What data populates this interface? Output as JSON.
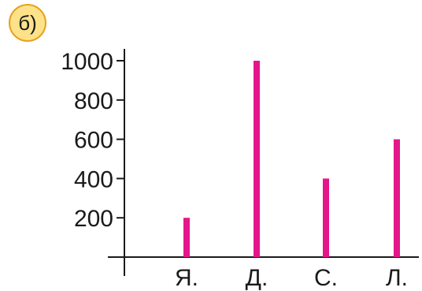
{
  "badge": {
    "label": "б)",
    "fill": "#fde28a",
    "stroke": "#e8a21c"
  },
  "chart_data": {
    "type": "bar",
    "categories": [
      "Я.",
      "Д.",
      "С.",
      "Л."
    ],
    "values": [
      200,
      1000,
      400,
      600
    ],
    "yticks": [
      200,
      400,
      600,
      800,
      1000
    ],
    "ylim": [
      0,
      1000
    ],
    "bar_color": "#e5168a",
    "axis_color": "#1a1a1a",
    "grid": false,
    "legend": "none"
  }
}
